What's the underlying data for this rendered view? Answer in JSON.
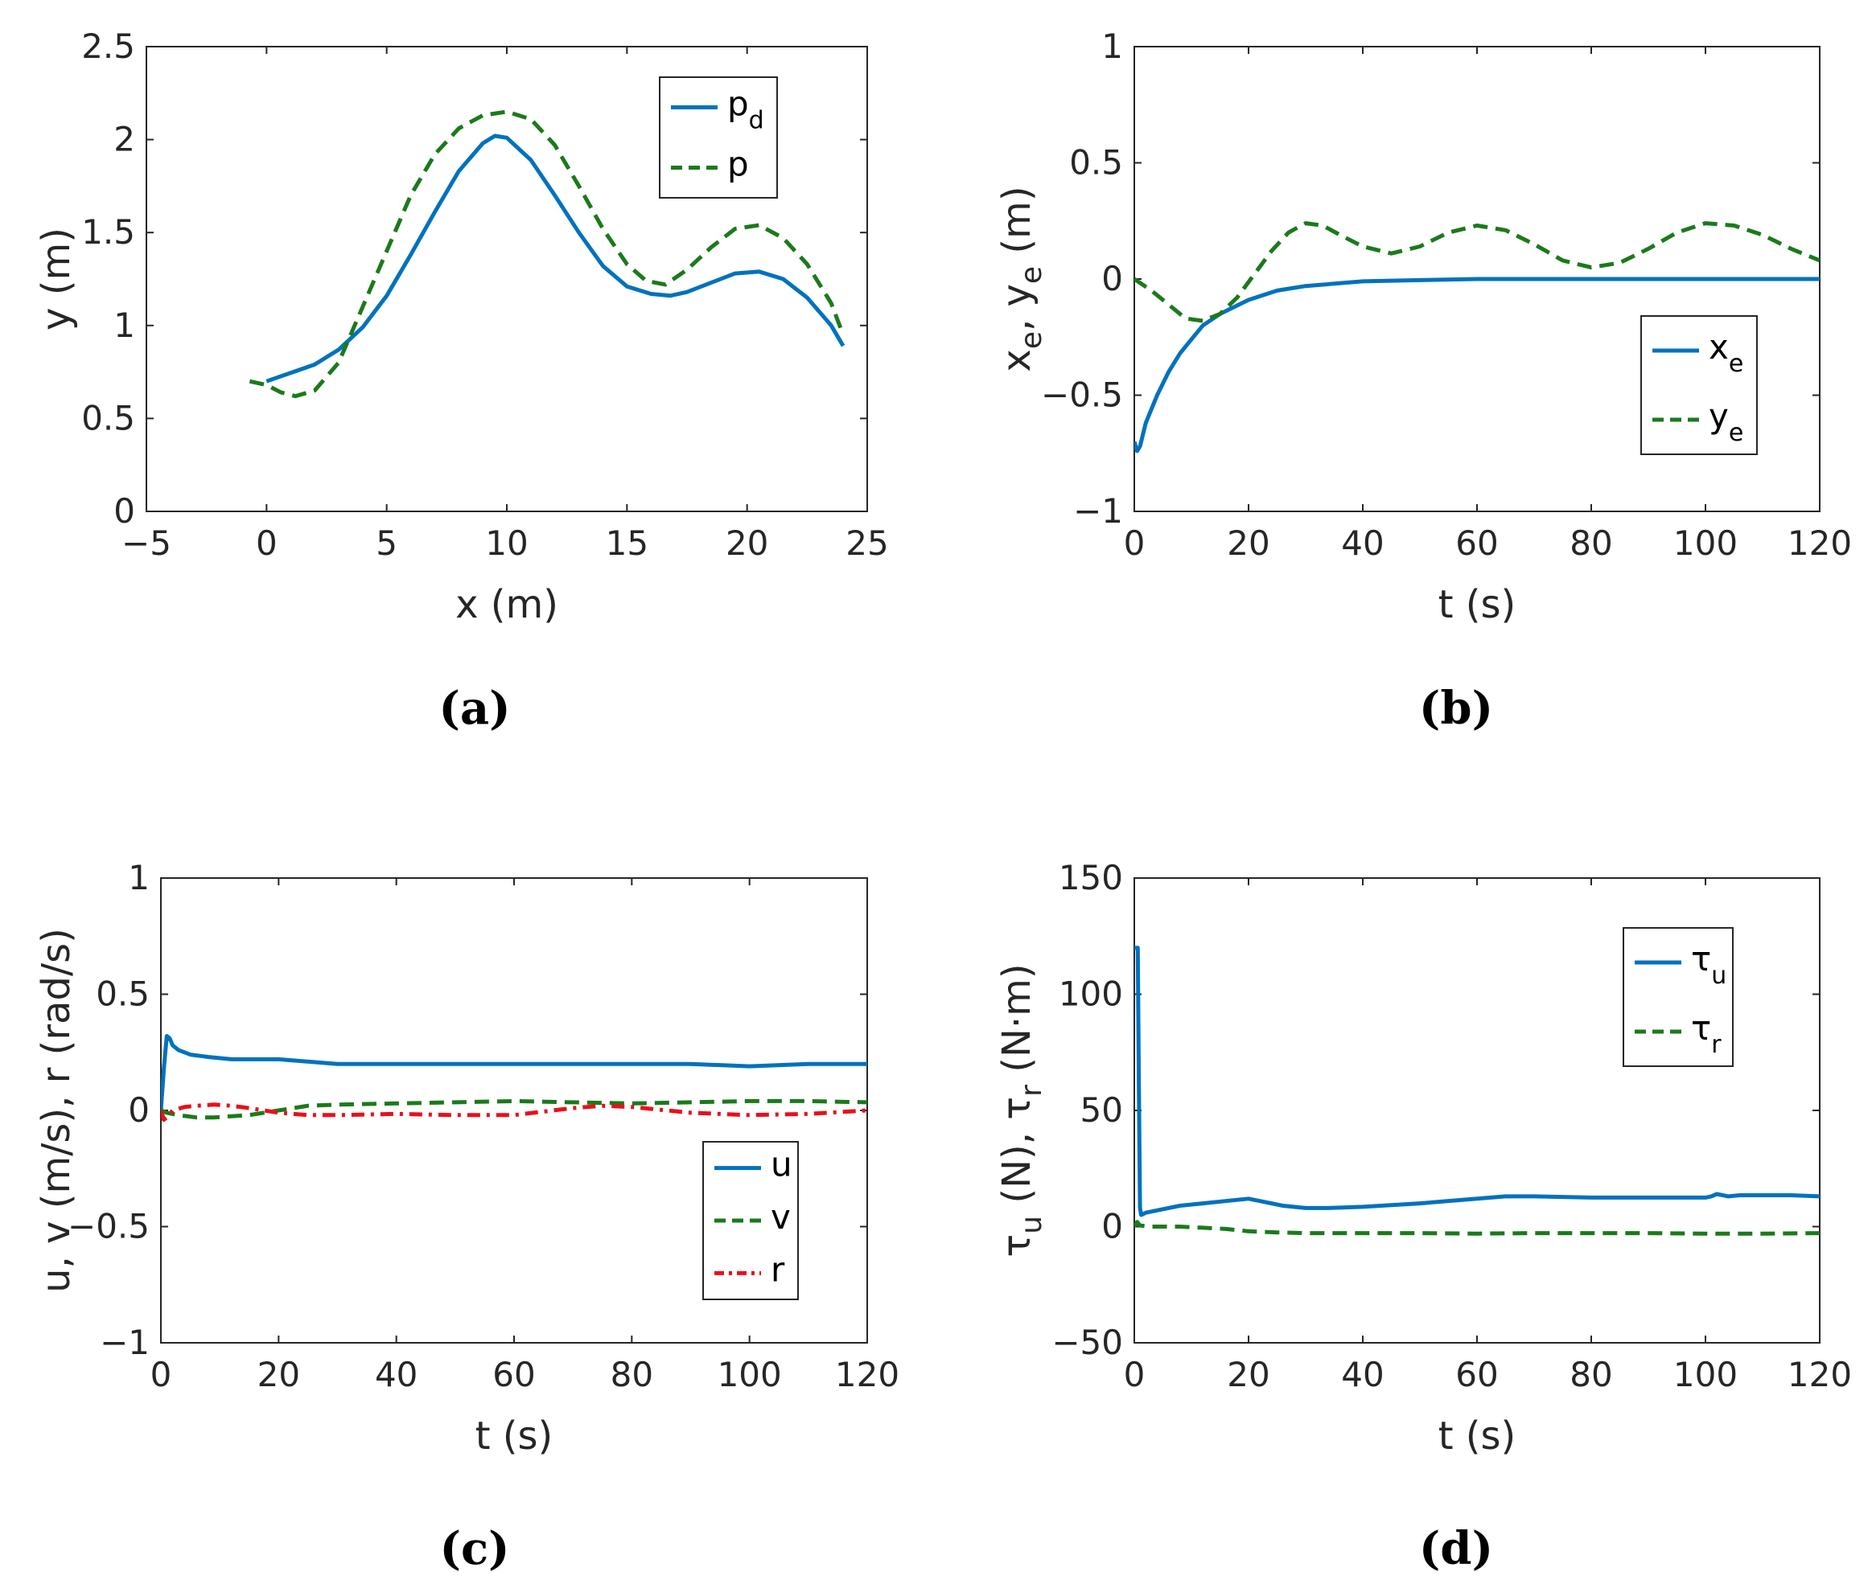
{
  "chart_data": [
    {
      "type": "line",
      "xlabel": "x (m)",
      "ylabel": "y (m)",
      "xlim": [
        -5,
        25
      ],
      "ylim": [
        0,
        2.5
      ],
      "xticks": [
        "−5",
        "0",
        "5",
        "10",
        "15",
        "20",
        "25"
      ],
      "yticks": [
        "0",
        "0.5",
        "1",
        "1.5",
        "2",
        "2.5"
      ],
      "caption": "(a)",
      "legend": [
        {
          "main": "p",
          "sub": "d",
          "style": "solid",
          "color": "#0072BD"
        },
        {
          "main": "p",
          "sub": "",
          "style": "dashed",
          "color": "#1B7A1B"
        }
      ],
      "series": [
        {
          "name": "p_d",
          "color": "#0072BD",
          "style": "solid",
          "x": [
            0,
            2,
            3,
            4,
            5,
            6,
            7,
            8,
            9,
            9.5,
            10,
            11,
            12,
            13,
            14,
            15,
            16,
            16.8,
            17.5,
            18.5,
            19.5,
            20.5,
            21.5,
            22.5,
            23.5,
            24
          ],
          "y": [
            0.7,
            0.79,
            0.87,
            0.99,
            1.16,
            1.38,
            1.61,
            1.83,
            1.98,
            2.02,
            2.01,
            1.89,
            1.7,
            1.5,
            1.32,
            1.21,
            1.17,
            1.16,
            1.18,
            1.23,
            1.28,
            1.29,
            1.25,
            1.15,
            1.0,
            0.89
          ]
        },
        {
          "name": "p",
          "color": "#1B7A1B",
          "style": "dashed",
          "x": [
            -0.7,
            0,
            0.6,
            1.2,
            2,
            3,
            4,
            5,
            6,
            7,
            8,
            9,
            10,
            11,
            12,
            13,
            14,
            15,
            15.8,
            16.6,
            17.5,
            18.5,
            19.5,
            20.5,
            21.5,
            22.5,
            23.5,
            24
          ],
          "y": [
            0.7,
            0.68,
            0.64,
            0.62,
            0.65,
            0.8,
            1.1,
            1.4,
            1.7,
            1.92,
            2.06,
            2.13,
            2.15,
            2.11,
            1.97,
            1.75,
            1.52,
            1.33,
            1.24,
            1.22,
            1.3,
            1.42,
            1.52,
            1.54,
            1.47,
            1.33,
            1.12,
            0.95
          ]
        }
      ]
    },
    {
      "type": "line",
      "xlabel": "t (s)",
      "ylabel": "x_e, y_e (m)",
      "ylabel_parts": {
        "a": "x",
        "a_sub": "e",
        "sep": ", ",
        "b": "y",
        "b_sub": "e",
        "unit": " (m)"
      },
      "xlim": [
        0,
        120
      ],
      "ylim": [
        -1,
        1
      ],
      "xticks": [
        "0",
        "20",
        "40",
        "60",
        "80",
        "100",
        "120"
      ],
      "yticks": [
        "−1",
        "−0.5",
        "0",
        "0.5",
        "1"
      ],
      "caption": "(b)",
      "legend": [
        {
          "main": "x",
          "sub": "e",
          "style": "solid",
          "color": "#0072BD"
        },
        {
          "main": "y",
          "sub": "e",
          "style": "dashed",
          "color": "#1B7A1B"
        }
      ],
      "series": [
        {
          "name": "x_e",
          "color": "#0072BD",
          "style": "solid",
          "x": [
            0,
            0.5,
            1,
            2,
            4,
            6,
            8,
            10,
            12,
            15,
            20,
            25,
            30,
            40,
            50,
            60,
            80,
            100,
            120
          ],
          "y": [
            -0.7,
            -0.74,
            -0.72,
            -0.62,
            -0.5,
            -0.4,
            -0.32,
            -0.26,
            -0.2,
            -0.15,
            -0.09,
            -0.05,
            -0.03,
            -0.01,
            -0.005,
            0,
            0,
            0,
            0
          ]
        },
        {
          "name": "y_e",
          "color": "#1B7A1B",
          "style": "dashed",
          "x": [
            0,
            3,
            6,
            9,
            12,
            15,
            18,
            21,
            24,
            27,
            30,
            33,
            36,
            40,
            45,
            50,
            55,
            60,
            65,
            70,
            75,
            80,
            85,
            90,
            95,
            100,
            105,
            110,
            115,
            120
          ],
          "y": [
            0,
            -0.05,
            -0.11,
            -0.17,
            -0.18,
            -0.15,
            -0.08,
            0.02,
            0.12,
            0.2,
            0.24,
            0.23,
            0.19,
            0.14,
            0.11,
            0.14,
            0.2,
            0.23,
            0.21,
            0.15,
            0.08,
            0.05,
            0.07,
            0.13,
            0.2,
            0.24,
            0.23,
            0.19,
            0.13,
            0.08
          ]
        }
      ]
    },
    {
      "type": "line",
      "xlabel": "t (s)",
      "ylabel": "u, v (m/s), r (rad/s)",
      "xlim": [
        0,
        120
      ],
      "ylim": [
        -1,
        1
      ],
      "xticks": [
        "0",
        "20",
        "40",
        "60",
        "80",
        "100",
        "120"
      ],
      "yticks": [
        "−1",
        "−0.5",
        "0",
        "0.5",
        "1"
      ],
      "caption": "(c)",
      "legend": [
        {
          "main": "u",
          "sub": "",
          "style": "solid",
          "color": "#0072BD"
        },
        {
          "main": "v",
          "sub": "",
          "style": "dashed",
          "color": "#1B7A1B"
        },
        {
          "main": "r",
          "sub": "",
          "style": "dashdot",
          "color": "#E8101A"
        }
      ],
      "series": [
        {
          "name": "u",
          "color": "#0072BD",
          "style": "solid",
          "x": [
            0,
            0.5,
            1,
            1.5,
            2,
            3,
            5,
            8,
            12,
            20,
            30,
            40,
            50,
            60,
            70,
            80,
            90,
            100,
            110,
            120
          ],
          "y": [
            0,
            0.18,
            0.32,
            0.31,
            0.28,
            0.26,
            0.24,
            0.23,
            0.22,
            0.22,
            0.2,
            0.2,
            0.2,
            0.2,
            0.2,
            0.2,
            0.2,
            0.19,
            0.2,
            0.2
          ]
        },
        {
          "name": "v",
          "color": "#1B7A1B",
          "style": "dashed",
          "x": [
            0,
            1,
            3,
            6,
            9,
            12,
            15,
            20,
            25,
            30,
            40,
            50,
            60,
            70,
            80,
            90,
            100,
            110,
            120
          ],
          "y": [
            0,
            -0.01,
            -0.02,
            -0.03,
            -0.03,
            -0.025,
            -0.02,
            0.0,
            0.02,
            0.025,
            0.03,
            0.035,
            0.04,
            0.035,
            0.03,
            0.035,
            0.04,
            0.04,
            0.035
          ]
        },
        {
          "name": "r",
          "color": "#E8101A",
          "style": "dashdot",
          "x": [
            0,
            0.5,
            1,
            2,
            4,
            6,
            9,
            12,
            15,
            20,
            25,
            30,
            40,
            50,
            60,
            70,
            75,
            80,
            90,
            100,
            110,
            120
          ],
          "y": [
            0,
            -0.04,
            -0.03,
            0.0,
            0.015,
            0.02,
            0.025,
            0.02,
            0.01,
            -0.01,
            -0.02,
            -0.02,
            -0.015,
            -0.02,
            -0.02,
            0.01,
            0.02,
            0.015,
            -0.01,
            -0.02,
            -0.015,
            0.0
          ]
        }
      ]
    },
    {
      "type": "line",
      "xlabel": "t (s)",
      "ylabel": "τ_u (N), τ_r (N·m)",
      "ylabel_parts": {
        "a": "τ",
        "a_sub": "u",
        "sep": " (N), ",
        "b": "τ",
        "b_sub": "r",
        "unit": " (N·m)"
      },
      "xlim": [
        0,
        120
      ],
      "ylim": [
        -50,
        150
      ],
      "xticks": [
        "0",
        "20",
        "40",
        "60",
        "80",
        "100",
        "120"
      ],
      "yticks": [
        "−50",
        "0",
        "50",
        "100",
        "150"
      ],
      "caption": "(d)",
      "legend": [
        {
          "main": "τ",
          "sub": "u",
          "style": "solid",
          "color": "#0072BD"
        },
        {
          "main": "τ",
          "sub": "r",
          "style": "dashed",
          "color": "#1B7A1B"
        }
      ],
      "series": [
        {
          "name": "τ_u",
          "color": "#0072BD",
          "style": "solid",
          "x": [
            0,
            0.2,
            0.6,
            0.8,
            1.0,
            1.2,
            2,
            4,
            8,
            12,
            16,
            20,
            22,
            26,
            30,
            34,
            40,
            50,
            60,
            65,
            70,
            80,
            90,
            100,
            101,
            102,
            104,
            106,
            110,
            115,
            120
          ],
          "y": [
            120,
            120,
            120,
            60,
            8,
            5,
            6,
            7,
            9,
            10,
            11,
            12,
            11,
            9,
            8,
            8,
            8.5,
            10,
            12,
            13,
            13,
            12.5,
            12.5,
            12.5,
            13,
            14,
            13,
            13.5,
            13.5,
            13.5,
            13
          ]
        },
        {
          "name": "τ_r",
          "color": "#1B7A1B",
          "style": "dashed",
          "x": [
            0,
            0.5,
            1,
            3,
            8,
            12,
            16,
            20,
            25,
            30,
            40,
            50,
            60,
            70,
            80,
            90,
            100,
            110,
            120
          ],
          "y": [
            0,
            2,
            0.5,
            0,
            0,
            -0.5,
            -1,
            -2,
            -2.5,
            -2.8,
            -2.8,
            -2.8,
            -3,
            -2.8,
            -2.8,
            -2.8,
            -3,
            -3,
            -2.8
          ]
        }
      ]
    }
  ]
}
